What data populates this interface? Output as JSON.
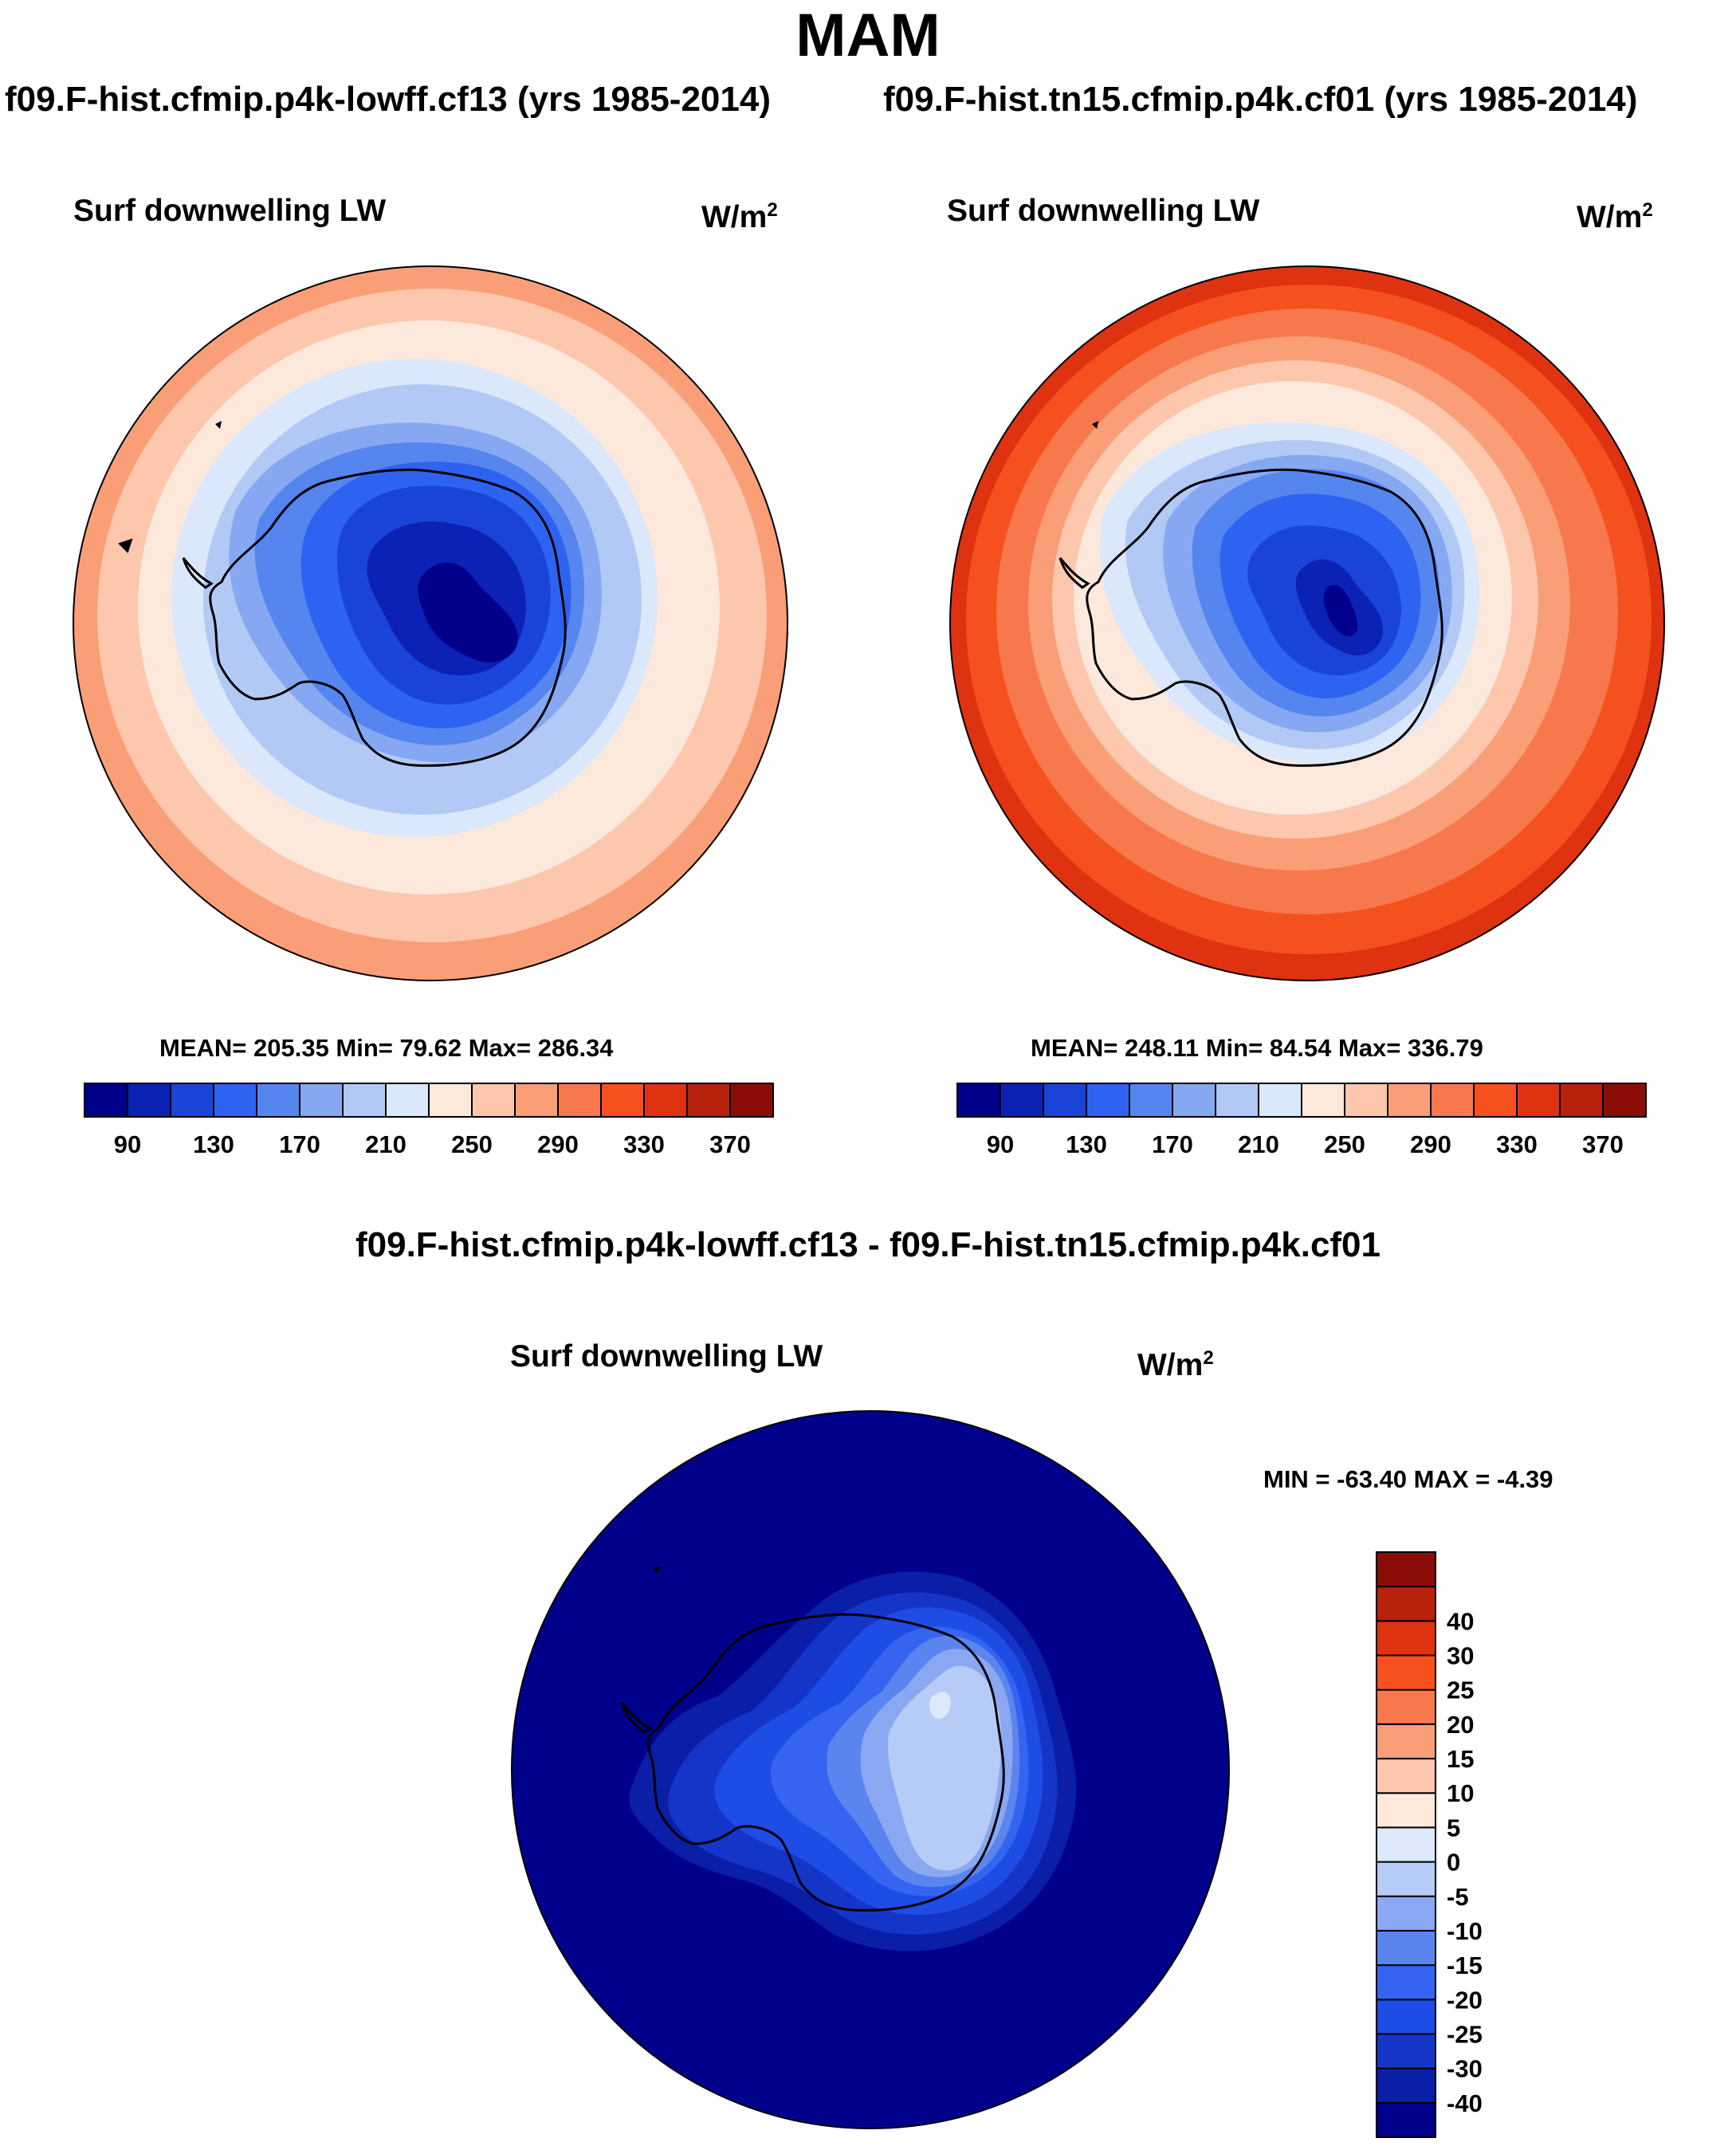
{
  "season": "MAM",
  "left_panel": {
    "case_title": "f09.F-hist.cfmip.p4k-lowff.cf13 (yrs 1985-2014)",
    "variable": "Surf downwelling LW",
    "units": "W/m",
    "units_exponent": "2",
    "stats": "MEAN= 205.35  Min=  79.62  Max= 286.34",
    "mean": 205.35,
    "min": 79.62,
    "max": 286.34
  },
  "right_panel": {
    "case_title": "f09.F-hist.tn15.cfmip.p4k.cf01 (yrs 1985-2014)",
    "variable": "Surf downwelling LW",
    "units": "W/m",
    "units_exponent": "2",
    "stats": "MEAN= 248.11  Min=  84.54  Max= 336.79",
    "mean": 248.11,
    "min": 84.54,
    "max": 336.79
  },
  "diff_panel": {
    "title": "f09.F-hist.cfmip.p4k-lowff.cf13 - f09.F-hist.tn15.cfmip.p4k.cf01",
    "variable": "Surf downwelling LW",
    "units": "W/m",
    "units_exponent": "2",
    "stats": "MIN = -63.40 MAX =  -4.39",
    "min": -63.4,
    "max": -4.39
  },
  "colorbar_main": {
    "colors": [
      "#00008b",
      "#0c22b5",
      "#1a44d8",
      "#2d63f0",
      "#5585ef",
      "#86a8f2",
      "#b2c9f6",
      "#dbe8fb",
      "#fde8dc",
      "#fcc7ad",
      "#f99e77",
      "#f7784c",
      "#f4511e",
      "#df3210",
      "#b8210b",
      "#8a0d07"
    ],
    "tick_labels": [
      "90",
      "130",
      "170",
      "210",
      "250",
      "290",
      "330",
      "370"
    ]
  },
  "colorbar_diff": {
    "colors_bottom_to_top": [
      "#00008b",
      "#0a1ea8",
      "#1535c9",
      "#1e4de6",
      "#3464f0",
      "#5a85ef",
      "#8aa8f2",
      "#b6ccf6",
      "#dde9fb",
      "#fde8dc",
      "#fcc7ad",
      "#f99e77",
      "#f7784c",
      "#f4511e",
      "#df3210",
      "#b8210b",
      "#8a0d07"
    ],
    "tick_labels_bottom_to_top": [
      "-40",
      "-30",
      "-25",
      "-20",
      "-15",
      "-10",
      "-5",
      "0",
      "5",
      "10",
      "15",
      "20",
      "25",
      "30",
      "40"
    ]
  }
}
